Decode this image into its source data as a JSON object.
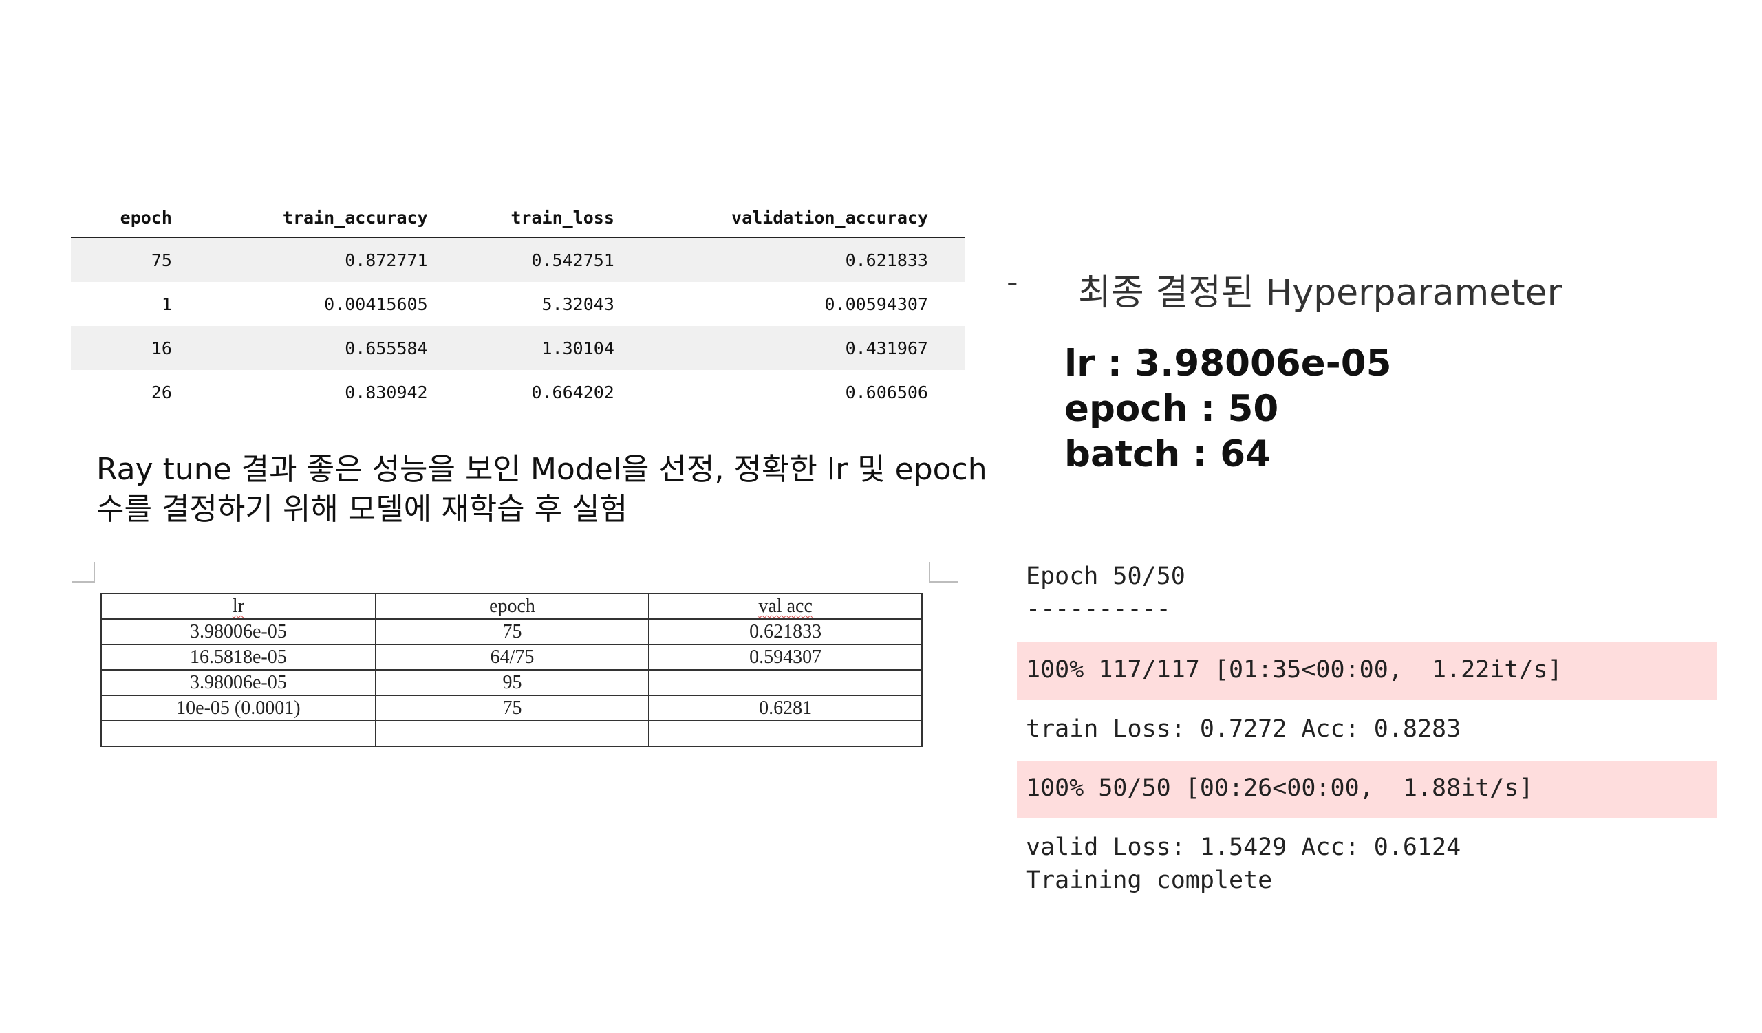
{
  "results_table": {
    "columns": [
      "epoch",
      "train_accuracy",
      "train_loss",
      "validation_accuracy"
    ],
    "rows": [
      [
        "75",
        "0.872771",
        "0.542751",
        "0.621833"
      ],
      [
        "1",
        "0.00415605",
        "5.32043",
        "0.00594307"
      ],
      [
        "16",
        "0.655584",
        "1.30104",
        "0.431967"
      ],
      [
        "26",
        "0.830942",
        "0.664202",
        "0.606506"
      ]
    ]
  },
  "caption": {
    "line1": "Ray tune 결과 좋은 성능을 보인 Model을 선정, 정확한 lr 및 epoch",
    "line2": "수를 결정하기 위해 모델에 재학습 후 실험"
  },
  "doc_table": {
    "columns": [
      "lr",
      "epoch",
      "val acc"
    ],
    "rows": [
      [
        "3.98006e-05",
        "75",
        "0.621833"
      ],
      [
        "16.5818e-05",
        "64/75",
        "0.594307"
      ],
      [
        "3.98006e-05",
        "95",
        ""
      ],
      [
        "10e-05 (0.0001)",
        "75",
        "0.6281"
      ],
      [
        "",
        "",
        ""
      ]
    ]
  },
  "final": {
    "bullet": "-",
    "title": "최종 결정된 Hyperparameter",
    "lr": "lr : 3.98006e-05",
    "epoch": "epoch : 50",
    "batch": "batch : 64"
  },
  "training_log": {
    "epoch_line": "Epoch 50/50",
    "separator": "----------",
    "train_progress": "100% 117/117 [01:35<00:00,  1.22it/s]",
    "train_result": "train Loss: 0.7272 Acc: 0.8283",
    "valid_progress": "100% 50/50 [00:26<00:00,  1.88it/s]",
    "valid_result": "valid Loss: 1.5429 Acc: 0.6124",
    "complete": "Training complete"
  },
  "colors": {
    "progress_bar_bg": "#fedddd",
    "striped_row_bg": "#f0f0f0"
  }
}
